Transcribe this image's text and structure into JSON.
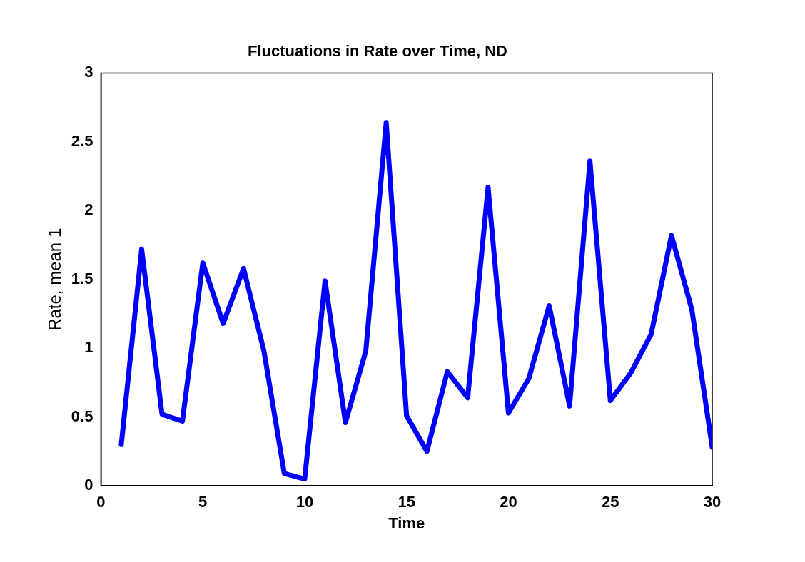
{
  "chart_data": {
    "type": "line",
    "title": "Fluctuations in Rate over Time, ND",
    "xlabel": "Time",
    "ylabel": "Rate, mean 1",
    "x": [
      1,
      2,
      3,
      4,
      5,
      6,
      7,
      8,
      9,
      10,
      11,
      12,
      13,
      14,
      15,
      16,
      17,
      18,
      19,
      20,
      21,
      22,
      23,
      24,
      25,
      26,
      27,
      28,
      29,
      30
    ],
    "series": [
      {
        "color": "#0000ff",
        "values": [
          0.3,
          1.72,
          0.52,
          0.47,
          1.62,
          1.18,
          1.58,
          0.98,
          0.09,
          0.05,
          1.49,
          0.46,
          0.98,
          2.64,
          0.51,
          0.25,
          0.83,
          0.64,
          2.17,
          0.53,
          0.78,
          1.31,
          0.58,
          2.36,
          0.62,
          0.82,
          1.1,
          1.82,
          1.28,
          0.28
        ]
      }
    ],
    "xlim": [
      0,
      30
    ],
    "xticks": [
      0,
      5,
      10,
      15,
      20,
      25,
      30
    ],
    "ylim": [
      0,
      3
    ],
    "yticks": [
      0,
      0.5,
      1,
      1.5,
      2,
      2.5,
      3
    ],
    "grid": false,
    "legend": false,
    "marker": "none",
    "line_style": "solid"
  }
}
